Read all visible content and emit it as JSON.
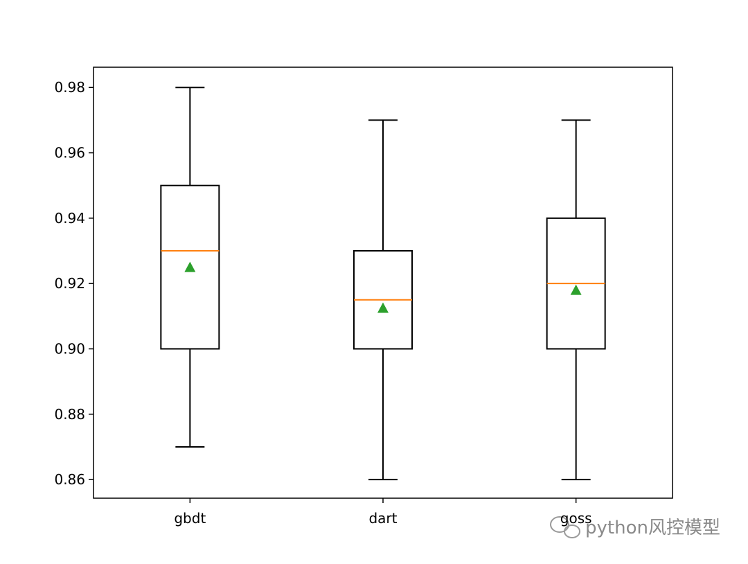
{
  "chart_data": {
    "type": "box",
    "categories": [
      "gbdt",
      "dart",
      "goss"
    ],
    "boxes": [
      {
        "whisker_low": 0.87,
        "q1": 0.9,
        "median": 0.93,
        "q3": 0.95,
        "whisker_high": 0.98,
        "mean": 0.925
      },
      {
        "whisker_low": 0.86,
        "q1": 0.9,
        "median": 0.915,
        "q3": 0.93,
        "whisker_high": 0.97,
        "mean": 0.9125
      },
      {
        "whisker_low": 0.86,
        "q1": 0.9,
        "median": 0.92,
        "q3": 0.94,
        "whisker_high": 0.97,
        "mean": 0.918
      }
    ],
    "box_color": "#000000",
    "median_color": "#ff7f0e",
    "mean_color": "#2ca02c",
    "ylim": [
      0.8543,
      0.9862
    ],
    "yticks": [
      {
        "value": 0.86,
        "label": "0.86"
      },
      {
        "value": 0.88,
        "label": "0.88"
      },
      {
        "value": 0.9,
        "label": "0.90"
      },
      {
        "value": 0.92,
        "label": "0.92"
      },
      {
        "value": 0.94,
        "label": "0.94"
      },
      {
        "value": 0.96,
        "label": "0.96"
      },
      {
        "value": 0.98,
        "label": "0.98"
      }
    ],
    "grid": false,
    "watermark": "python风控模型"
  }
}
